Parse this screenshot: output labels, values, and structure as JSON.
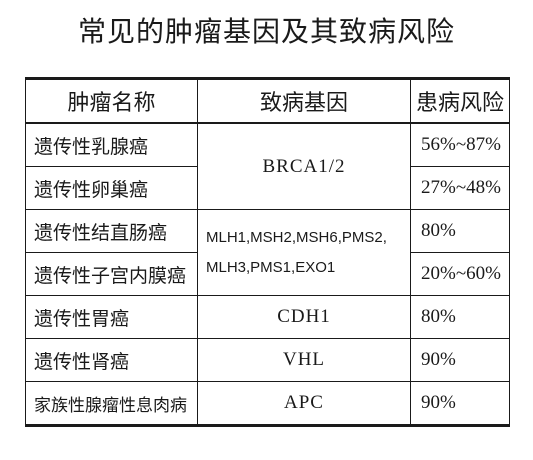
{
  "title": "常见的肿瘤基因及其致病风险",
  "table": {
    "headers": [
      "肿瘤名称",
      "致病基因",
      "患病风险"
    ],
    "rows": [
      {
        "name": "遗传性乳腺癌",
        "gene": "BRCA1/2",
        "risk": "56%~87%"
      },
      {
        "name": "遗传性卵巢癌",
        "gene": "BRCA1/2",
        "risk": "27%~48%"
      },
      {
        "name": "遗传性结直肠癌",
        "gene": "MLH1,MSH2,MSH6,PMS2,",
        "risk": "80%"
      },
      {
        "name": "遗传性子宫内膜癌",
        "gene": "MLH3,PMS1,EXO1",
        "risk": "20%~60%"
      },
      {
        "name": "遗传性胃癌",
        "gene": "CDH1",
        "risk": "80%"
      },
      {
        "name": "遗传性肾癌",
        "gene": "VHL",
        "risk": "90%"
      },
      {
        "name": "家族性腺瘤性息肉病",
        "gene": "APC",
        "risk": "90%"
      }
    ]
  }
}
